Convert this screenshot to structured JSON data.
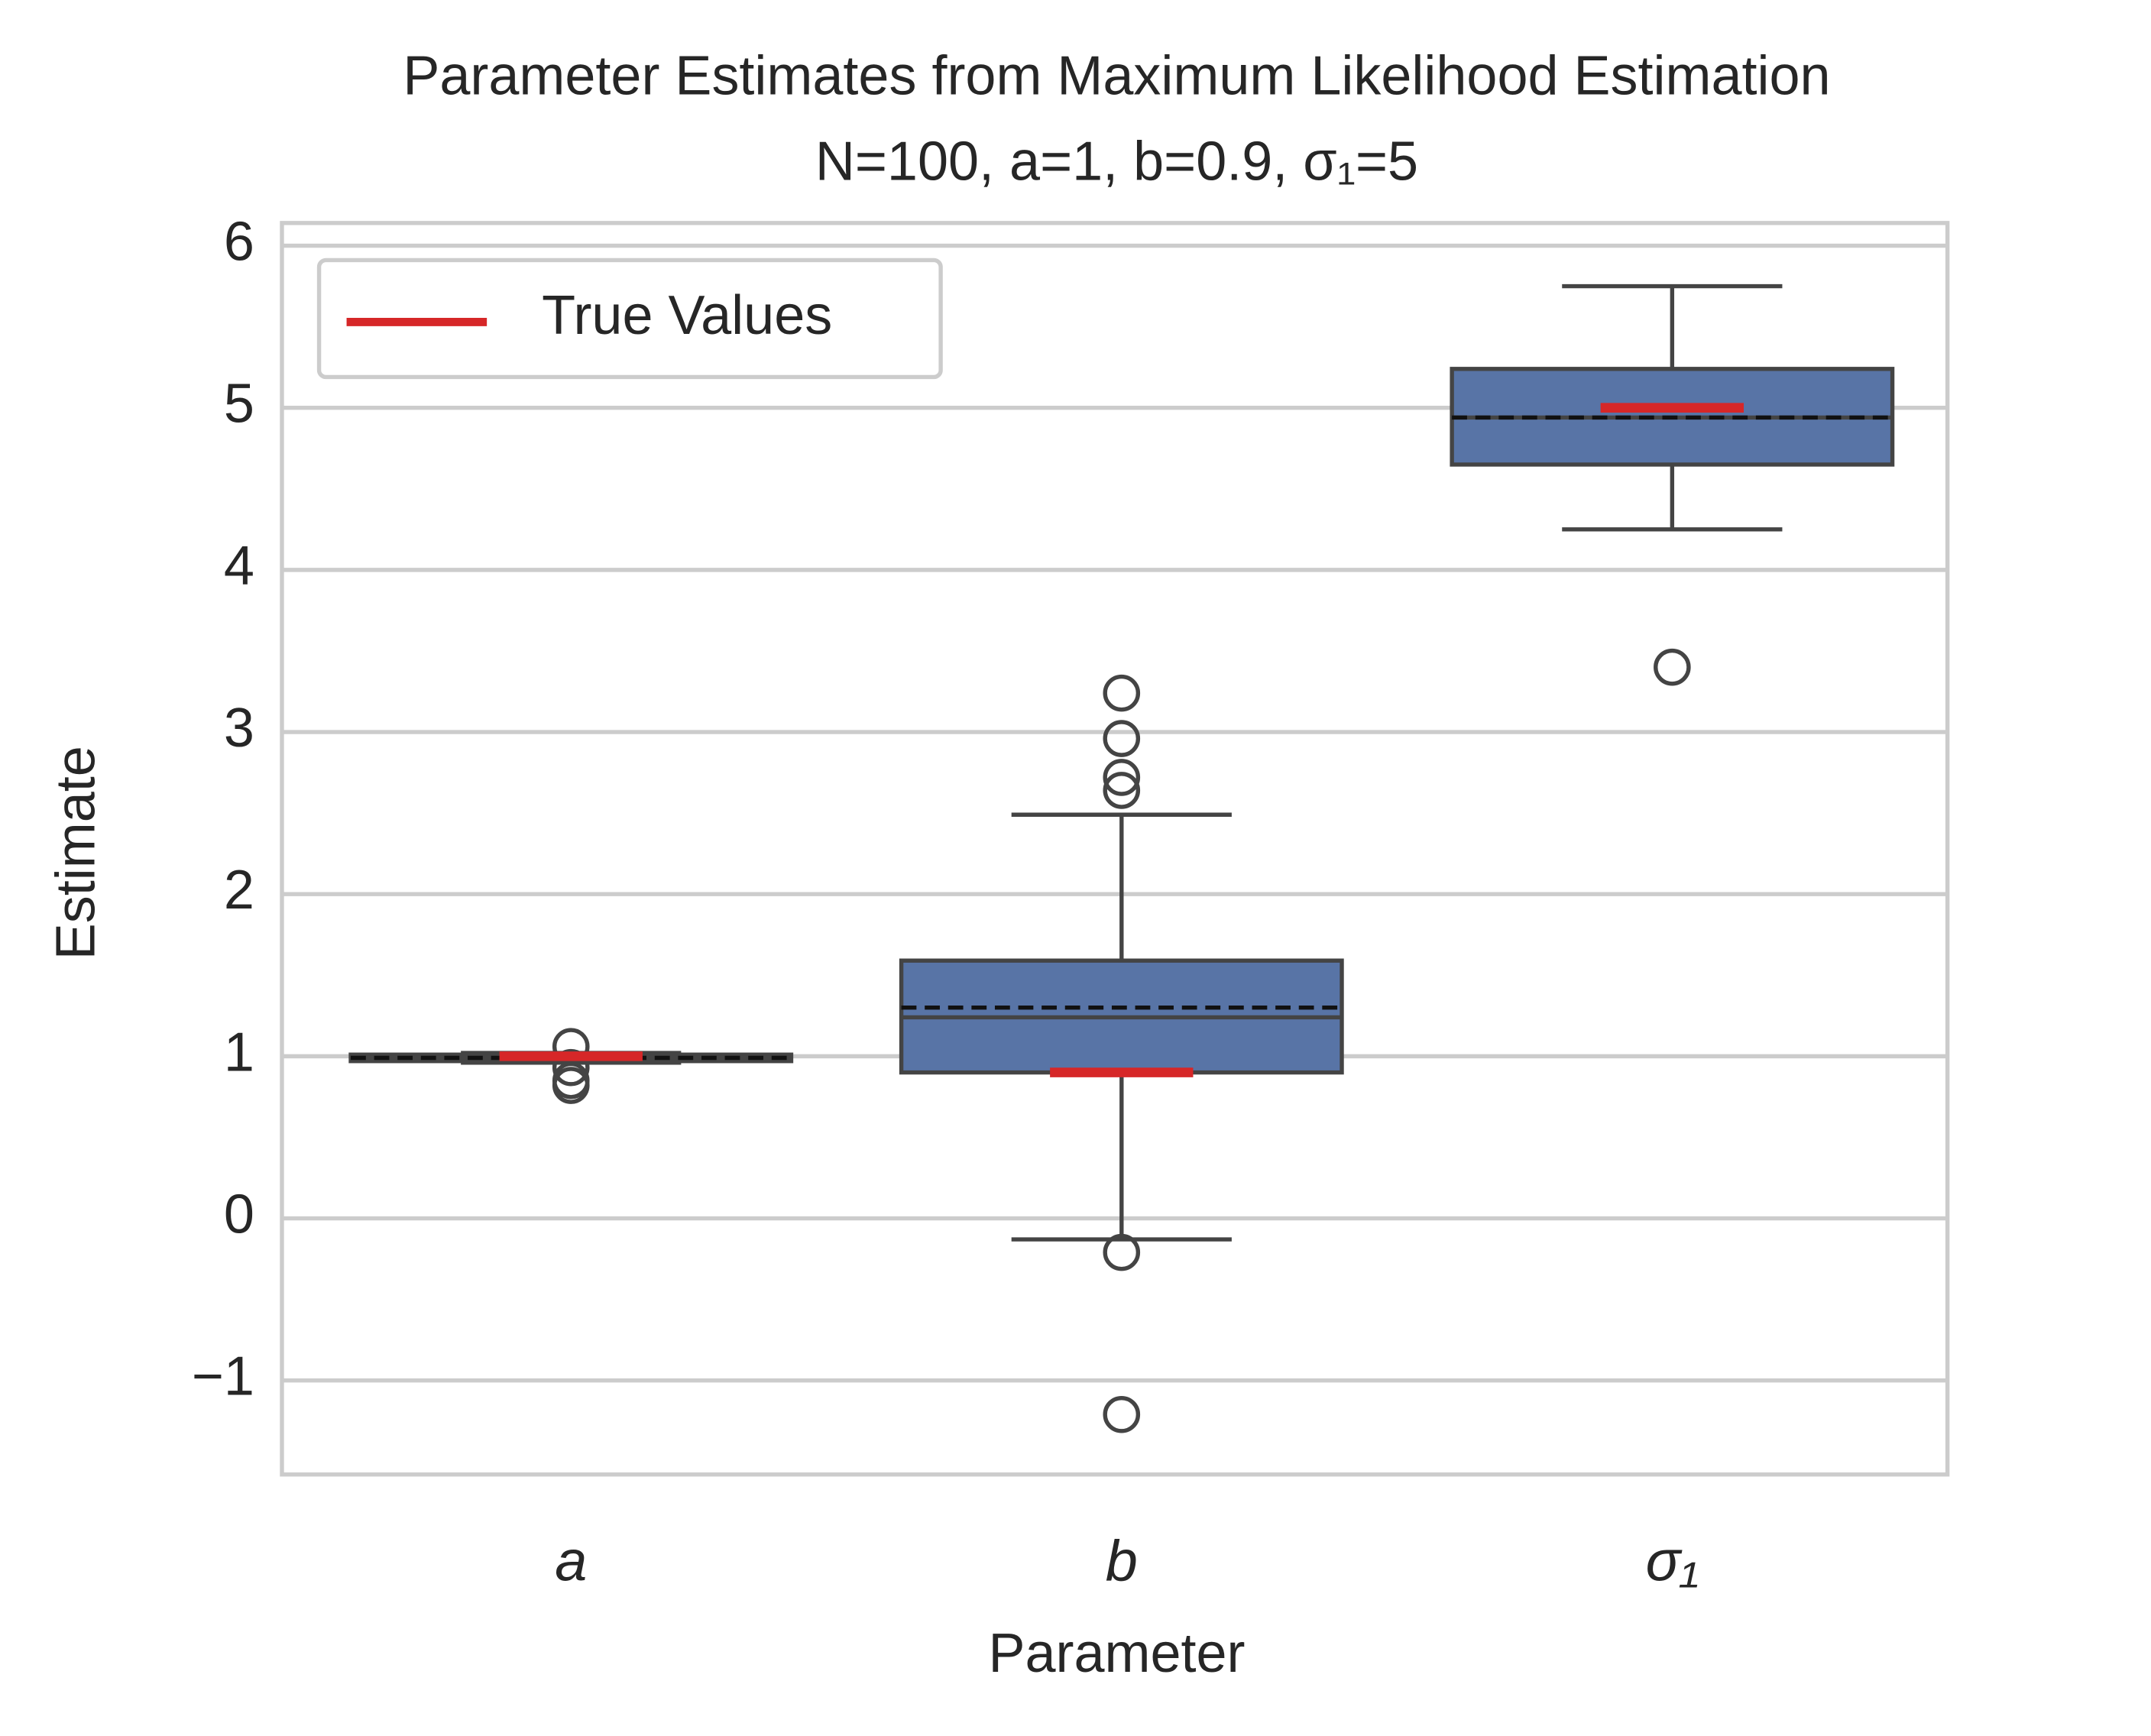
{
  "chart_data": {
    "type": "box",
    "title": "Parameter Estimates from Maximum Likelihood Estimation",
    "subtitle": "N=100, a=1, b=0.9, σ₁=5",
    "x_label": "Parameter",
    "y_label": "Estimate",
    "categories": [
      "a",
      "b",
      "σ₁"
    ],
    "q1": [
      0.97,
      0.9,
      4.65
    ],
    "median": [
      0.99,
      1.24,
      4.94
    ],
    "q3": [
      1.01,
      1.59,
      5.24
    ],
    "whisker_low": [
      0.96,
      -0.13,
      4.25
    ],
    "whisker_high": [
      1.02,
      2.49,
      5.75
    ],
    "mean": [
      0.99,
      1.3,
      4.94
    ],
    "outliers": [
      [
        1.06,
        0.93,
        0.85,
        0.82
      ],
      [
        3.24,
        2.96,
        2.72,
        2.64,
        -0.21,
        -1.21
      ],
      [
        3.4
      ]
    ],
    "true_values": [
      1,
      0.9,
      5
    ],
    "true_label": "True Values",
    "box_color": "#5874a6",
    "true_color": "#d62728",
    "ylim": [
      -1.58,
      6.14
    ],
    "yticks": [
      {
        "value": -1,
        "label": "−1"
      },
      0,
      1,
      2,
      3,
      4,
      5,
      6
    ],
    "grid": true,
    "legend_loc": "upper left"
  }
}
